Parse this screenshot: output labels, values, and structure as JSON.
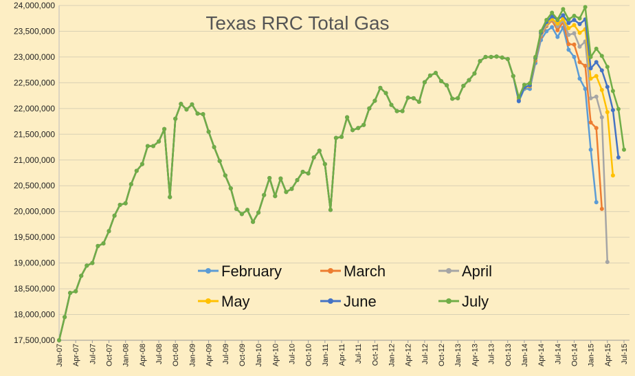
{
  "chart_data": {
    "type": "line",
    "title": "Texas RRC Total Gas",
    "xlabel": "",
    "ylabel": "",
    "ylim": [
      17500000,
      24000000
    ],
    "yticks": [
      "17,500,000",
      "18,000,000",
      "18,500,000",
      "19,000,000",
      "19,500,000",
      "20,000,000",
      "20,500,000",
      "21,000,000",
      "21,500,000",
      "22,000,000",
      "22,500,000",
      "23,000,000",
      "23,500,000",
      "24,000,000"
    ],
    "x_tick_labels": [
      "Jan-07",
      "Apr-07",
      "Jul-07",
      "Oct-07",
      "Jan-08",
      "Apr-08",
      "Jul-08",
      "Oct-08",
      "Jan-09",
      "Apr-09",
      "Jul-09",
      "Oct-09",
      "Jan-10",
      "Apr-10",
      "Jul-10",
      "Oct-10",
      "Jan-11",
      "Apr-11",
      "Jul-11",
      "Oct-11",
      "Jan-12",
      "Apr-12",
      "Jul-12",
      "Oct-12",
      "Jan-13",
      "Apr-13",
      "Jul-13",
      "Oct-13",
      "Jan-14",
      "Apr-14",
      "Jul-14",
      "Oct-14",
      "Jan-15",
      "Apr-15",
      "Jul-15"
    ],
    "grid": true,
    "legend_position": "bottom-center",
    "base": [
      17500000,
      17950000,
      18420000,
      18450000,
      18750000,
      18950000,
      19000000,
      19330000,
      19380000,
      19620000,
      19920000,
      20130000,
      20160000,
      20530000,
      20790000,
      20920000,
      21270000,
      21270000,
      21360000,
      21600000,
      20280000,
      21800000,
      22090000,
      21980000,
      22080000,
      21900000,
      21890000,
      21550000,
      21250000,
      20980000,
      20700000,
      20450000,
      20050000,
      19950000,
      20030000,
      19800000,
      19980000,
      20320000,
      20650000,
      20300000,
      20640000,
      20380000,
      20440000,
      20610000,
      20770000,
      20740000,
      21050000,
      21180000,
      20920000,
      20030000,
      21430000,
      21450000,
      21830000,
      21580000,
      21620000,
      21680000,
      22000000,
      22150000,
      22400000,
      22300000,
      22070000,
      21950000,
      21950000,
      22210000,
      22200000,
      22130000,
      22510000,
      22640000,
      22690000,
      22530000,
      22450000,
      22190000,
      22200000,
      22440000,
      22550000,
      22680000,
      22920000,
      23000000,
      23000000,
      23010000,
      22990000,
      22960000,
      22630000
    ],
    "series": [
      {
        "name": "February",
        "color": "#5b9bd5",
        "tail": [
          22140000,
          22380000,
          22380000,
          22880000,
          23330000,
          23500000,
          23580000,
          23390000,
          23570000,
          23140000,
          23000000,
          22580000,
          22380000,
          21200000,
          20180000
        ]
      },
      {
        "name": "March",
        "color": "#ed7d31",
        "tail": [
          22190000,
          22410000,
          22430000,
          22930000,
          23400000,
          23600000,
          23710000,
          23520000,
          23680000,
          23250000,
          23240000,
          22900000,
          22830000,
          21730000,
          21620000,
          20050000
        ]
      },
      {
        "name": "April",
        "color": "#a5a5a5",
        "tail": [
          22200000,
          22420000,
          22440000,
          22960000,
          23430000,
          23620000,
          23730000,
          23600000,
          23710000,
          23430000,
          23460000,
          23200000,
          23300000,
          22200000,
          22230000,
          21830000,
          19020000
        ]
      },
      {
        "name": "May",
        "color": "#ffc000",
        "tail": [
          22180000,
          22400000,
          22440000,
          22970000,
          23460000,
          23650000,
          23740000,
          23650000,
          23740000,
          23560000,
          23620000,
          23470000,
          23540000,
          22580000,
          22630000,
          22360000,
          21930000,
          20700000
        ]
      },
      {
        "name": "June",
        "color": "#4472c4",
        "tail": [
          22150000,
          22410000,
          22450000,
          22980000,
          23470000,
          23680000,
          23790000,
          23720000,
          23810000,
          23660000,
          23720000,
          23640000,
          23730000,
          22780000,
          22900000,
          22740000,
          22420000,
          21970000,
          21050000
        ]
      },
      {
        "name": "July",
        "color": "#70ad47",
        "tail": [
          22220000,
          22460000,
          22490000,
          23000000,
          23500000,
          23720000,
          23860000,
          23730000,
          23930000,
          23730000,
          23800000,
          23750000,
          23970000,
          23000000,
          23160000,
          23020000,
          22810000,
          22340000,
          21990000,
          21200000
        ]
      }
    ]
  }
}
